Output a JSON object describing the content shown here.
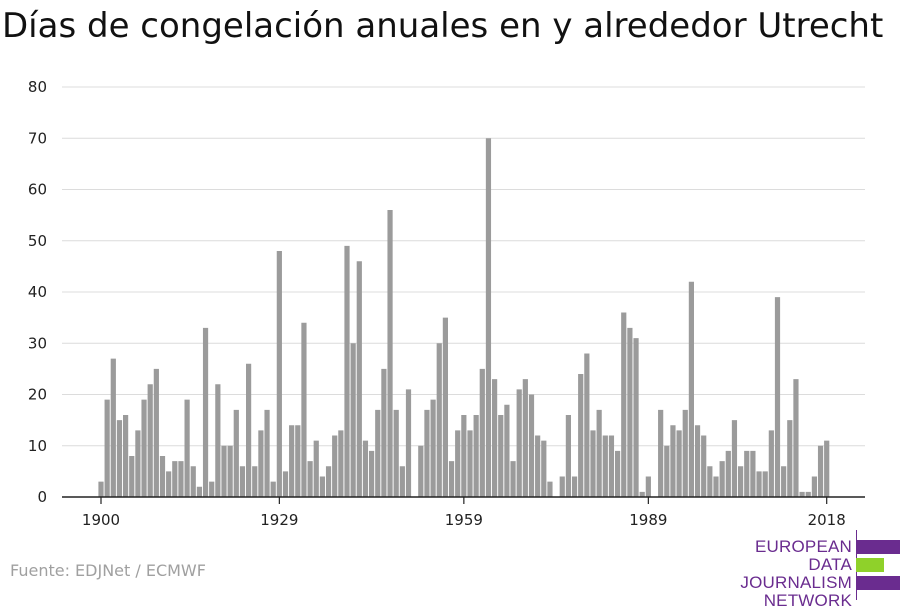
{
  "title": "Días de congelación anuales en y alrededor Utrecht",
  "source": "Fuente: EDJNet / ECMWF",
  "logo": {
    "lines": [
      "EUROPEAN",
      "DATA JOURNALISM",
      "NETWORK"
    ],
    "colors": {
      "purple": "#6a2c8f",
      "green": "#8fd12a"
    }
  },
  "chart_data": {
    "type": "bar",
    "title": "Días de congelación anuales en y alrededor Utrecht",
    "xlabel": "",
    "ylabel": "",
    "ylim": [
      0,
      80
    ],
    "yticks": [
      0,
      10,
      20,
      30,
      40,
      50,
      60,
      70,
      80
    ],
    "xticks": [
      1900,
      1929,
      1959,
      1989,
      2018
    ],
    "grid": true,
    "bar_color": "#9b9b9b",
    "x": [
      1900,
      1901,
      1902,
      1903,
      1904,
      1905,
      1906,
      1907,
      1908,
      1909,
      1910,
      1911,
      1912,
      1913,
      1914,
      1915,
      1916,
      1917,
      1918,
      1919,
      1920,
      1921,
      1922,
      1923,
      1924,
      1925,
      1926,
      1927,
      1928,
      1929,
      1930,
      1931,
      1932,
      1933,
      1934,
      1935,
      1936,
      1937,
      1938,
      1939,
      1940,
      1941,
      1942,
      1943,
      1944,
      1945,
      1946,
      1947,
      1948,
      1949,
      1950,
      1951,
      1952,
      1953,
      1954,
      1955,
      1956,
      1957,
      1958,
      1959,
      1960,
      1961,
      1962,
      1963,
      1964,
      1965,
      1966,
      1967,
      1968,
      1969,
      1970,
      1971,
      1972,
      1973,
      1974,
      1975,
      1976,
      1977,
      1978,
      1979,
      1980,
      1981,
      1982,
      1983,
      1984,
      1985,
      1986,
      1987,
      1988,
      1989,
      1990,
      1991,
      1992,
      1993,
      1994,
      1995,
      1996,
      1997,
      1998,
      1999,
      2000,
      2001,
      2002,
      2003,
      2004,
      2005,
      2006,
      2007,
      2008,
      2009,
      2010,
      2011,
      2012,
      2013,
      2014,
      2015,
      2016,
      2017,
      2018,
      2019
    ],
    "values": [
      3,
      19,
      27,
      15,
      16,
      8,
      13,
      19,
      22,
      25,
      8,
      5,
      7,
      7,
      19,
      6,
      2,
      33,
      3,
      22,
      10,
      10,
      17,
      6,
      26,
      6,
      13,
      17,
      3,
      48,
      5,
      14,
      14,
      34,
      7,
      11,
      4,
      6,
      12,
      13,
      49,
      30,
      46,
      11,
      9,
      17,
      25,
      56,
      17,
      6,
      21,
      0,
      10,
      17,
      19,
      30,
      35,
      7,
      13,
      16,
      13,
      16,
      25,
      70,
      23,
      16,
      18,
      7,
      21,
      23,
      20,
      12,
      11,
      3,
      0,
      4,
      16,
      4,
      24,
      28,
      13,
      17,
      12,
      12,
      9,
      36,
      33,
      31,
      1,
      4,
      0,
      17,
      10,
      14,
      13,
      17,
      42,
      14,
      12,
      6,
      4,
      7,
      9,
      15,
      6,
      9,
      9,
      5,
      5,
      13,
      39,
      6,
      15,
      23,
      1,
      1,
      4,
      10,
      11,
      0
    ]
  }
}
